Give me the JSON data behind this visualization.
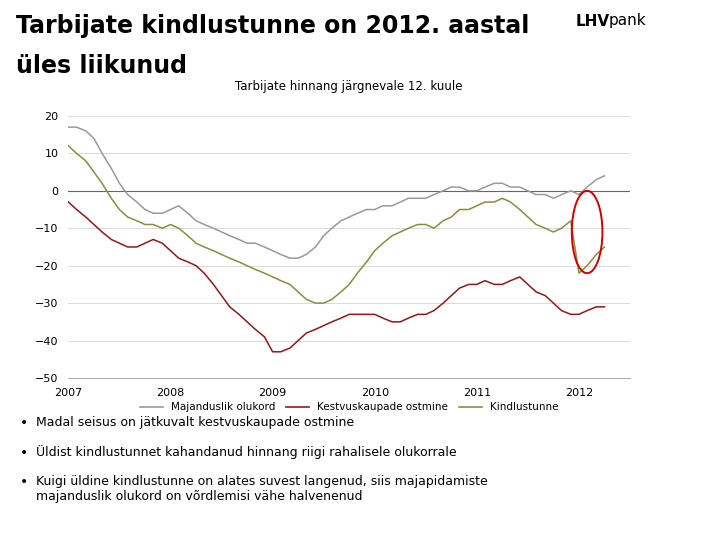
{
  "title_line1": "Tarbijate kindlustunne on 2012. aastal",
  "title_line2": "üles liikunud",
  "chart_title": "Tarbijate hinnang järgnevale 12. kuule",
  "ylim": [
    -50,
    25
  ],
  "yticks": [
    -50,
    -40,
    -30,
    -20,
    -10,
    0,
    10,
    20
  ],
  "legend_labels": [
    "Majanduslik olukord",
    "Kestvuskaupade ostmine",
    "Kindlustunne"
  ],
  "line_colors": [
    "#999999",
    "#8B1A1A",
    "#8B8B40"
  ],
  "background_color": "#ffffff",
  "bullet_points": [
    "Madal seisus on jätkuvalt kestvuskaupade ostmine",
    "Üldist kindlustunnet kahandanud hinnang riigi rahalisele olukorrale",
    "Kuigi üldine kindlustunne on alates suvest langenud, siis majapidamiste\nmajanduslik olukord on võrdlemisi vähe halvenenud"
  ],
  "majanduslik_x": [
    2007.0,
    2007.08,
    2007.17,
    2007.25,
    2007.33,
    2007.42,
    2007.5,
    2007.58,
    2007.67,
    2007.75,
    2007.83,
    2007.92,
    2008.0,
    2008.08,
    2008.17,
    2008.25,
    2008.33,
    2008.42,
    2008.5,
    2008.58,
    2008.67,
    2008.75,
    2008.83,
    2008.92,
    2009.0,
    2009.08,
    2009.17,
    2009.25,
    2009.33,
    2009.42,
    2009.5,
    2009.58,
    2009.67,
    2009.75,
    2009.83,
    2009.92,
    2010.0,
    2010.08,
    2010.17,
    2010.25,
    2010.33,
    2010.42,
    2010.5,
    2010.58,
    2010.67,
    2010.75,
    2010.83,
    2010.92,
    2011.0,
    2011.08,
    2011.17,
    2011.25,
    2011.33,
    2011.42,
    2011.5,
    2011.58,
    2011.67,
    2011.75,
    2011.83,
    2011.92,
    2012.0,
    2012.08,
    2012.17,
    2012.25
  ],
  "majanduslik_y": [
    17,
    17,
    16,
    14,
    10,
    6,
    2,
    -1,
    -3,
    -5,
    -6,
    -6,
    -5,
    -4,
    -6,
    -8,
    -9,
    -10,
    -11,
    -12,
    -13,
    -14,
    -14,
    -15,
    -16,
    -17,
    -18,
    -18,
    -17,
    -15,
    -12,
    -10,
    -8,
    -7,
    -6,
    -5,
    -5,
    -4,
    -4,
    -3,
    -2,
    -2,
    -2,
    -1,
    0,
    1,
    1,
    0,
    0,
    1,
    2,
    2,
    1,
    1,
    0,
    -1,
    -1,
    -2,
    -1,
    0,
    -1,
    1,
    3,
    4
  ],
  "kestvus_x": [
    2007.0,
    2007.08,
    2007.17,
    2007.25,
    2007.33,
    2007.42,
    2007.5,
    2007.58,
    2007.67,
    2007.75,
    2007.83,
    2007.92,
    2008.0,
    2008.08,
    2008.17,
    2008.25,
    2008.33,
    2008.42,
    2008.5,
    2008.58,
    2008.67,
    2008.75,
    2008.83,
    2008.92,
    2009.0,
    2009.08,
    2009.17,
    2009.25,
    2009.33,
    2009.42,
    2009.5,
    2009.58,
    2009.67,
    2009.75,
    2009.83,
    2009.92,
    2010.0,
    2010.08,
    2010.17,
    2010.25,
    2010.33,
    2010.42,
    2010.5,
    2010.58,
    2010.67,
    2010.75,
    2010.83,
    2010.92,
    2011.0,
    2011.08,
    2011.17,
    2011.25,
    2011.33,
    2011.42,
    2011.5,
    2011.58,
    2011.67,
    2011.75,
    2011.83,
    2011.92,
    2012.0,
    2012.08,
    2012.17,
    2012.25
  ],
  "kestvus_y": [
    -3,
    -5,
    -7,
    -9,
    -11,
    -13,
    -14,
    -15,
    -15,
    -14,
    -13,
    -14,
    -16,
    -18,
    -19,
    -20,
    -22,
    -25,
    -28,
    -31,
    -33,
    -35,
    -37,
    -39,
    -43,
    -43,
    -42,
    -40,
    -38,
    -37,
    -36,
    -35,
    -34,
    -33,
    -33,
    -33,
    -33,
    -34,
    -35,
    -35,
    -34,
    -33,
    -33,
    -32,
    -30,
    -28,
    -26,
    -25,
    -25,
    -24,
    -25,
    -25,
    -24,
    -23,
    -25,
    -27,
    -28,
    -30,
    -32,
    -33,
    -33,
    -32,
    -31,
    -31
  ],
  "kindlustunne_x": [
    2007.0,
    2007.08,
    2007.17,
    2007.25,
    2007.33,
    2007.42,
    2007.5,
    2007.58,
    2007.67,
    2007.75,
    2007.83,
    2007.92,
    2008.0,
    2008.08,
    2008.17,
    2008.25,
    2008.33,
    2008.42,
    2008.5,
    2008.58,
    2008.67,
    2008.75,
    2008.83,
    2008.92,
    2009.0,
    2009.08,
    2009.17,
    2009.25,
    2009.33,
    2009.42,
    2009.5,
    2009.58,
    2009.67,
    2009.75,
    2009.83,
    2009.92,
    2010.0,
    2010.08,
    2010.17,
    2010.25,
    2010.33,
    2010.42,
    2010.5,
    2010.58,
    2010.67,
    2010.75,
    2010.83,
    2010.92,
    2011.0,
    2011.08,
    2011.17,
    2011.25,
    2011.33,
    2011.42,
    2011.5,
    2011.58,
    2011.67,
    2011.75,
    2011.83,
    2011.92,
    2012.0,
    2012.08,
    2012.17,
    2012.25
  ],
  "kindlustunne_y": [
    12,
    10,
    8,
    5,
    2,
    -2,
    -5,
    -7,
    -8,
    -9,
    -9,
    -10,
    -9,
    -10,
    -12,
    -14,
    -15,
    -16,
    -17,
    -18,
    -19,
    -20,
    -21,
    -22,
    -23,
    -24,
    -25,
    -27,
    -29,
    -30,
    -30,
    -29,
    -27,
    -25,
    -22,
    -19,
    -16,
    -14,
    -12,
    -11,
    -10,
    -9,
    -9,
    -10,
    -8,
    -7,
    -5,
    -5,
    -4,
    -3,
    -3,
    -2,
    -3,
    -5,
    -7,
    -9,
    -10,
    -11,
    -10,
    -8,
    -22,
    -20,
    -17,
    -15
  ]
}
